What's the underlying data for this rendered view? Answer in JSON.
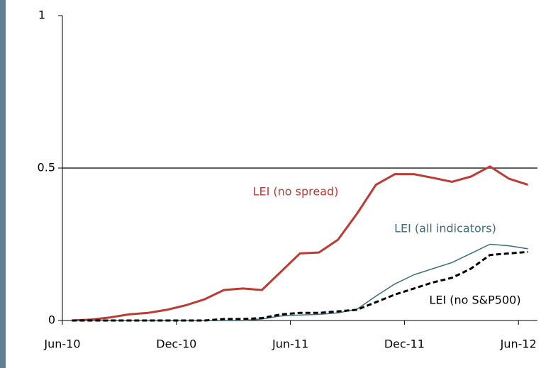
{
  "chart_data": {
    "type": "line",
    "categories": [
      "Jun-10",
      null,
      null,
      null,
      null,
      null,
      "Dec-10",
      null,
      null,
      null,
      null,
      null,
      "Jun-11",
      null,
      null,
      null,
      null,
      null,
      "Dec-11",
      null,
      null,
      null,
      null,
      null,
      "Jun-12"
    ],
    "series": [
      {
        "name": "LEI (no spread)",
        "color": "#be3a34",
        "width": 3,
        "dashed": false,
        "values": [
          0,
          0.003,
          0.01,
          0.02,
          0.025,
          0.035,
          0.05,
          0.07,
          0.1,
          0.105,
          0.1,
          0.16,
          0.22,
          0.223,
          0.265,
          0.35,
          0.445,
          0.48,
          0.48,
          0.468,
          0.455,
          0.472,
          0.505,
          0.465,
          0.445
        ]
      },
      {
        "name": "LEI (all indicators)",
        "color": "#3d6b7f",
        "width": 1.5,
        "dashed": false,
        "values": [
          0,
          0,
          0,
          0,
          0,
          0,
          0,
          0,
          0,
          0,
          0.005,
          0.015,
          0.018,
          0.02,
          0.025,
          0.037,
          0.08,
          0.12,
          0.15,
          0.17,
          0.19,
          0.22,
          0.25,
          0.245,
          0.235
        ]
      },
      {
        "name": "LEI (no S&P500)",
        "color": "#000000",
        "width": 3,
        "dashed": true,
        "values": [
          0,
          0,
          0,
          0,
          0,
          0,
          0,
          0,
          0.005,
          0.005,
          0.008,
          0.02,
          0.025,
          0.025,
          0.03,
          0.035,
          0.06,
          0.085,
          0.105,
          0.125,
          0.14,
          0.17,
          0.215,
          0.22,
          0.225
        ]
      }
    ],
    "ylim": [
      0,
      1
    ],
    "yticks": [
      0,
      {
        "value": 0.5,
        "label": "0.5"
      },
      1
    ],
    "hline": 0.5
  }
}
